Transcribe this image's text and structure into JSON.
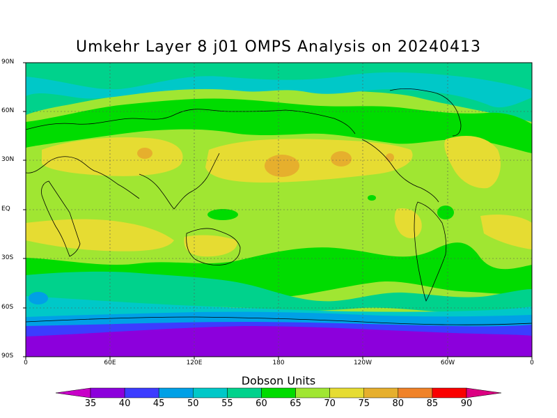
{
  "title": "Umkehr Layer 8 j01 OMPS Analysis on 20240413",
  "colorbar_title": "Dobson Units",
  "y_ticks": [
    "90N",
    "60N",
    "30N",
    "EQ",
    "30S",
    "60S",
    "90S"
  ],
  "x_ticks": [
    "0",
    "60E",
    "120E",
    "180",
    "120W",
    "60W",
    "0"
  ],
  "colorbar": {
    "labels": [
      "35",
      "40",
      "45",
      "50",
      "55",
      "60",
      "65",
      "70",
      "75",
      "80",
      "85",
      "90"
    ],
    "colors": [
      "#c800c8",
      "#8c00dc",
      "#3c3cff",
      "#00a0e6",
      "#00c8c8",
      "#00d28c",
      "#00dc00",
      "#a0e632",
      "#e6dc32",
      "#e6af2d",
      "#f08228",
      "#fa0000",
      "#dc0082"
    ]
  }
}
